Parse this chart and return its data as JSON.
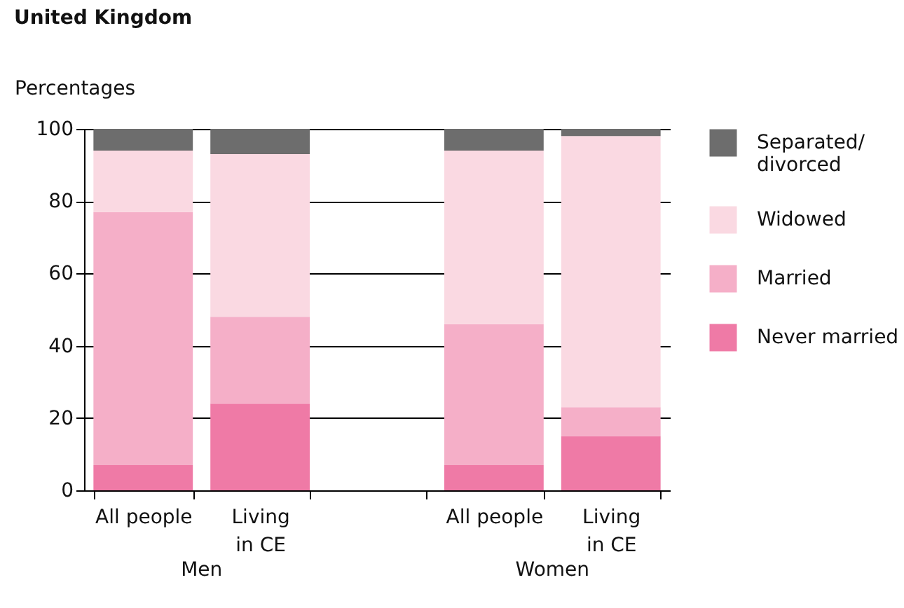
{
  "chart_data": {
    "type": "bar",
    "stacked": true,
    "title": "United Kingdom",
    "ylabel": "Percentages",
    "categories": [
      "All people",
      "Living in CE",
      null,
      "All people",
      "Living in CE"
    ],
    "series": [
      {
        "name": "Never married",
        "color": "#ef7aa6",
        "values": [
          7,
          24,
          null,
          7,
          15
        ]
      },
      {
        "name": "Married",
        "color": "#f5afc8",
        "values": [
          70,
          24,
          null,
          39,
          8
        ]
      },
      {
        "name": "Widowed",
        "color": "#fad9e2",
        "values": [
          17,
          45,
          null,
          48,
          75
        ]
      },
      {
        "name": "Separated/divorced",
        "color": "#6d6d6d",
        "values": [
          6,
          7,
          null,
          6,
          2
        ]
      }
    ],
    "ylim": [
      0,
      100
    ],
    "yticks": [
      0,
      20,
      40,
      60,
      80,
      100
    ],
    "grid": "y",
    "legend": "right",
    "annotations": [
      "Men",
      "Women"
    ]
  }
}
